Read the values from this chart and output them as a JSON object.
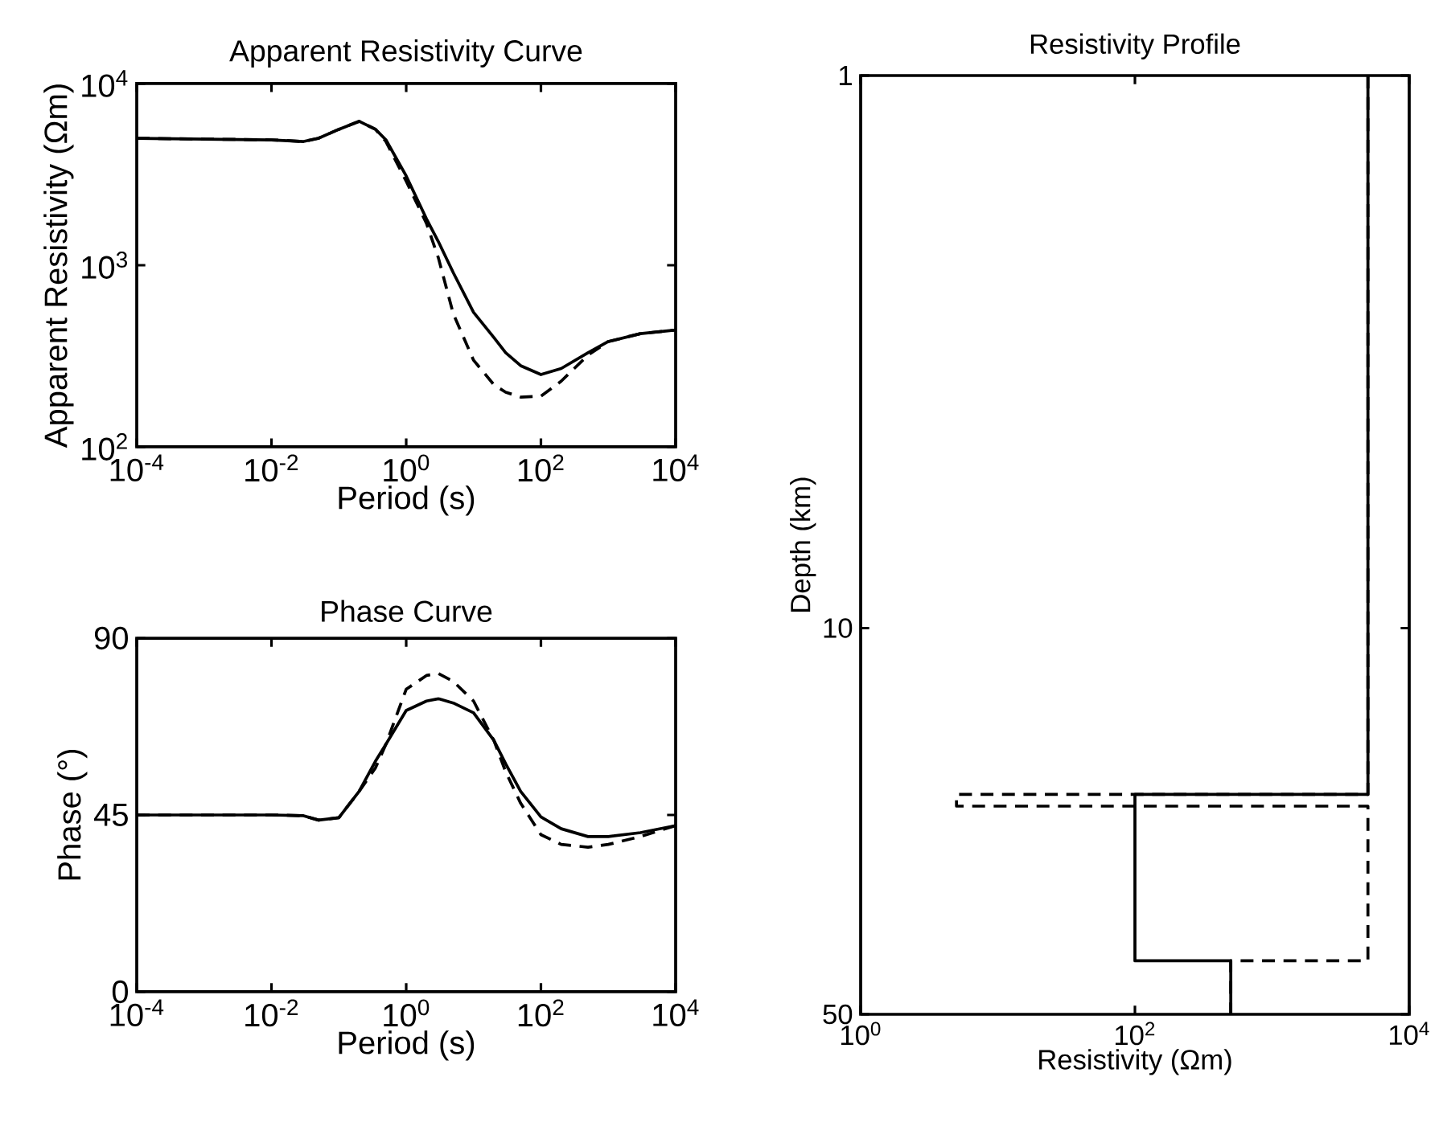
{
  "chart_data": [
    {
      "type": "line",
      "title": "Apparent Resistivity Curve",
      "xlabel": "Period (s)",
      "ylabel": "Apparent Resistivity (Ωm)",
      "log": "xy",
      "x": [
        0.0001,
        0.01,
        0.03,
        0.05,
        0.1,
        0.2,
        0.35,
        0.5,
        1,
        2,
        3,
        5,
        10,
        20,
        30,
        50,
        100,
        200,
        500,
        1000,
        3000,
        10000
      ],
      "series": [
        {
          "color": "#000000",
          "line_style": "solid",
          "values": [
            5000,
            4900,
            4800,
            5000,
            5600,
            6200,
            5600,
            4900,
            3100,
            1800,
            1350,
            910,
            550,
            400,
            330,
            280,
            250,
            270,
            330,
            380,
            420,
            440
          ]
        },
        {
          "color": "#000000",
          "line_style": "dashed",
          "values": [
            5000,
            4900,
            4800,
            5000,
            5600,
            6200,
            5600,
            4800,
            2900,
            1700,
            1100,
            540,
            300,
            220,
            200,
            188,
            190,
            230,
            320,
            380,
            420,
            440
          ]
        }
      ],
      "xlim": [
        0.0001,
        10000
      ],
      "ylim": [
        100,
        10000
      ],
      "xticks": [
        {
          "value": 0.0001,
          "label": "10$^{-4}$"
        },
        {
          "value": 0.01,
          "label": "10$^{-2}$"
        },
        {
          "value": 1,
          "label": "10$^{0}$"
        },
        {
          "value": 100,
          "label": "10$^{2}$"
        },
        {
          "value": 10000,
          "label": "10$^{4}$"
        }
      ],
      "yticks": [
        {
          "value": 100,
          "label": "10$^{2}$"
        },
        {
          "value": 1000,
          "label": "10$^{3}$"
        },
        {
          "value": 10000,
          "label": "10$^{4}$"
        }
      ]
    },
    {
      "type": "line",
      "title": "Phase Curve",
      "xlabel": "Period (s)",
      "ylabel": "Phase (°)",
      "log": "x",
      "x": [
        0.0001,
        0.01,
        0.03,
        0.05,
        0.1,
        0.2,
        0.35,
        0.5,
        1,
        2,
        3,
        5,
        10,
        20,
        30,
        50,
        100,
        200,
        500,
        1000,
        3000,
        10000
      ],
      "series": [
        {
          "color": "#000000",
          "line_style": "solid",
          "values": [
            45,
            45,
            44.8,
            43.7,
            44.3,
            51,
            58.7,
            63,
            71.6,
            74,
            74.6,
            73.5,
            71,
            64,
            58,
            51,
            44.5,
            41.5,
            39.5,
            39.5,
            40.5,
            42.3
          ]
        },
        {
          "color": "#000000",
          "line_style": "dashed",
          "values": [
            45,
            45,
            44.8,
            43.7,
            44.3,
            51,
            57,
            63,
            77,
            80.5,
            81,
            79,
            74,
            64,
            56,
            48,
            40,
            37.5,
            36.8,
            37.5,
            39.5,
            42.3
          ]
        }
      ],
      "xlim": [
        0.0001,
        10000
      ],
      "ylim": [
        0,
        90
      ],
      "xticks": [
        {
          "value": 0.0001,
          "label": "10$^{-4}$"
        },
        {
          "value": 0.01,
          "label": "10$^{-2}$"
        },
        {
          "value": 1,
          "label": "10$^{0}$"
        },
        {
          "value": 100,
          "label": "10$^{2}$"
        },
        {
          "value": 10000,
          "label": "10$^{4}$"
        }
      ],
      "yticks": [
        0,
        45,
        90
      ]
    },
    {
      "type": "line",
      "title": "Resistivity Profile",
      "xlabel": "Resistivity (Ωm)",
      "ylabel": "Depth (km)",
      "log": "xy",
      "series": [
        {
          "color": "#000000",
          "line_style": "solid",
          "x": [
            5000,
            5000,
            100,
            100,
            500,
            500
          ],
          "values": [
            1,
            20,
            20,
            40,
            40,
            50
          ]
        },
        {
          "color": "#000000",
          "line_style": "dashed",
          "x": [
            5000,
            5000,
            5,
            5,
            5000,
            5000,
            500,
            500
          ],
          "values": [
            1,
            20,
            20,
            21,
            21,
            40,
            40,
            50
          ]
        }
      ],
      "xlim": [
        1,
        10000
      ],
      "ylim": [
        50,
        1
      ],
      "xticks": [
        {
          "value": 1,
          "label": "10$^{0}$"
        },
        {
          "value": 100,
          "label": "10$^{2}$"
        },
        {
          "value": 10000,
          "label": "10$^{4}$"
        }
      ],
      "yticks": [
        1,
        10,
        50
      ]
    }
  ]
}
